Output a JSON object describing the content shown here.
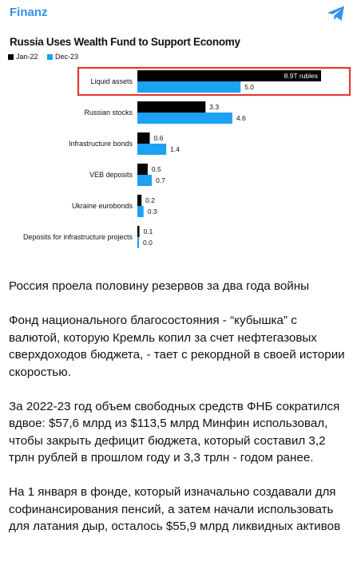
{
  "channel": {
    "name": "Finanz",
    "icon": "telegram-icon",
    "accent_color": "#3390ec"
  },
  "chart_data": {
    "type": "bar",
    "orientation": "horizontal",
    "title": "Russia Uses Wealth Fund to Support Economy",
    "categories": [
      "Liquid assets",
      "Russian stocks",
      "Infrastructure bonds",
      "VEB deposits",
      "Ukraine eurobonds",
      "Deposits for infrastructure projects"
    ],
    "series": [
      {
        "name": "Jan-22",
        "color": "#000000",
        "values": [
          8.9,
          3.3,
          0.6,
          0.5,
          0.2,
          0.1
        ],
        "labels": [
          "8.9T rubles",
          "3.3",
          "0.6",
          "0.5",
          "0.2",
          "0.1"
        ]
      },
      {
        "name": "Dec-23",
        "color": "#1da1f2",
        "values": [
          5.0,
          4.6,
          1.4,
          0.7,
          0.3,
          0.0
        ],
        "labels": [
          "5.0",
          "4.6",
          "1.4",
          "0.7",
          "0.3",
          "0.0"
        ]
      }
    ],
    "xlim": [
      0,
      8.9
    ],
    "highlight": {
      "category": "Liquid assets",
      "color": "#e53935"
    },
    "legend_position": "top-left",
    "grid": false
  },
  "post": {
    "headline": "Россия проела половину резервов за два года войны",
    "paragraphs": [
      "Фонд национального благосостояния - “кубышка” с валютой, которую Кремль копил за счет нефтегазовых сверхдоходов бюджета, - тает с рекордной в своей истории скоростью.",
      "За 2022-23 год объем свободных средств ФНБ сократился вдвое: $57,6 млрд из $113,5 млрд Минфин использовал, чтобы закрыть дефицит бюджета, который составил 3,2 трлн рублей в прошлом году и 3,3 трлн - годом ранее.",
      "На 1 января в фонде, который изначально создавали для софинансирования пенсий, а затем начали использовать для латания дыр, осталось $55,9 млрд ликвидных активов"
    ]
  }
}
